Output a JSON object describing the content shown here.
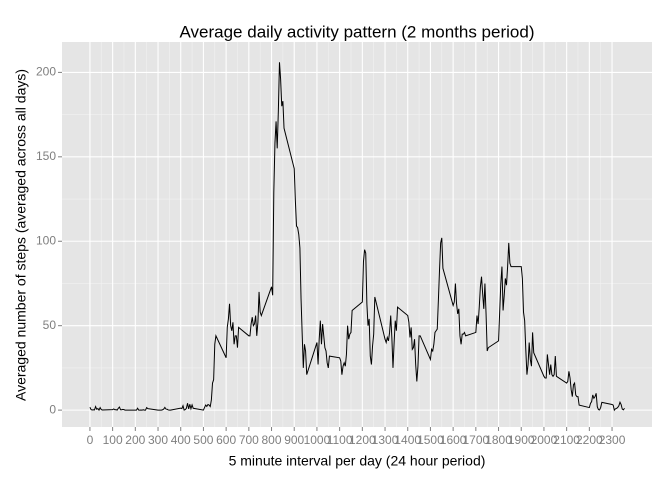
{
  "chart_data": {
    "type": "line",
    "title": "Average daily activity pattern (2 months period)",
    "x_label": "5 minute interval per day (24 hour period)",
    "y_label": "Averaged number of steps (averaged across all days)",
    "x": [
      0,
      5,
      10,
      15,
      20,
      25,
      30,
      35,
      40,
      45,
      50,
      55,
      100,
      105,
      110,
      115,
      120,
      125,
      130,
      135,
      140,
      145,
      150,
      155,
      200,
      205,
      210,
      215,
      220,
      225,
      230,
      235,
      240,
      245,
      250,
      255,
      300,
      305,
      310,
      315,
      320,
      325,
      330,
      335,
      340,
      345,
      350,
      355,
      400,
      405,
      410,
      415,
      420,
      425,
      430,
      435,
      440,
      445,
      450,
      455,
      500,
      505,
      510,
      515,
      520,
      525,
      530,
      535,
      540,
      545,
      550,
      555,
      600,
      605,
      610,
      615,
      620,
      625,
      630,
      635,
      640,
      645,
      650,
      655,
      700,
      705,
      710,
      715,
      720,
      725,
      730,
      735,
      740,
      745,
      750,
      755,
      800,
      805,
      810,
      815,
      820,
      825,
      830,
      835,
      840,
      845,
      850,
      855,
      900,
      905,
      910,
      915,
      920,
      925,
      930,
      935,
      940,
      945,
      950,
      955,
      1000,
      1005,
      1010,
      1015,
      1020,
      1025,
      1030,
      1035,
      1040,
      1045,
      1050,
      1055,
      1100,
      1105,
      1110,
      1115,
      1120,
      1125,
      1130,
      1135,
      1140,
      1145,
      1150,
      1155,
      1200,
      1205,
      1210,
      1215,
      1220,
      1225,
      1230,
      1235,
      1240,
      1245,
      1250,
      1255,
      1300,
      1305,
      1310,
      1315,
      1320,
      1325,
      1330,
      1335,
      1340,
      1345,
      1350,
      1355,
      1400,
      1405,
      1410,
      1415,
      1420,
      1425,
      1430,
      1435,
      1440,
      1445,
      1450,
      1455,
      1500,
      1505,
      1510,
      1515,
      1520,
      1525,
      1530,
      1535,
      1540,
      1545,
      1550,
      1555,
      1600,
      1605,
      1610,
      1615,
      1620,
      1625,
      1630,
      1635,
      1640,
      1645,
      1650,
      1655,
      1700,
      1705,
      1710,
      1715,
      1720,
      1725,
      1730,
      1735,
      1740,
      1745,
      1750,
      1755,
      1800,
      1805,
      1810,
      1815,
      1820,
      1825,
      1830,
      1835,
      1840,
      1845,
      1850,
      1855,
      1900,
      1905,
      1910,
      1915,
      1920,
      1925,
      1930,
      1935,
      1940,
      1945,
      1950,
      1955,
      2000,
      2005,
      2010,
      2015,
      2020,
      2025,
      2030,
      2035,
      2040,
      2045,
      2050,
      2055,
      2100,
      2105,
      2110,
      2115,
      2120,
      2125,
      2130,
      2135,
      2140,
      2145,
      2150,
      2155,
      2200,
      2205,
      2210,
      2215,
      2220,
      2225,
      2230,
      2235,
      2240,
      2245,
      2250,
      2255,
      2300,
      2305,
      2310,
      2315,
      2320,
      2325,
      2330,
      2335,
      2340,
      2345,
      2350,
      2355
    ],
    "values": [
      1.7,
      0.3,
      0.1,
      0.2,
      0.1,
      2.1,
      0.5,
      0.9,
      0,
      1.5,
      0.3,
      0.1,
      0.3,
      0.7,
      0.2,
      0.3,
      0,
      1.1,
      1.8,
      0.2,
      0.2,
      0.4,
      0.3,
      0,
      0,
      0,
      1.1,
      0,
      0,
      0.1,
      0,
      0.2,
      0,
      0,
      1.5,
      0.9,
      0,
      0,
      0,
      0,
      0.2,
      0.6,
      1.6,
      0.6,
      0.5,
      0.1,
      0,
      0,
      1.2,
      0.9,
      2.6,
      0,
      0.3,
      1.1,
      4.1,
      0.7,
      3.5,
      0.8,
      3.1,
      1.1,
      0,
      1.6,
      3,
      2.2,
      3.3,
      3,
      2.1,
      6,
      16,
      18,
      39,
      44,
      31,
      49,
      54,
      63,
      50,
      47,
      52,
      39,
      44,
      44,
      37,
      49,
      44,
      44,
      51,
      55,
      50,
      51,
      56,
      44,
      52,
      70,
      58,
      56,
      73,
      68,
      129,
      158,
      171,
      155,
      177,
      206,
      196,
      180,
      183,
      167,
      143,
      124,
      109,
      108,
      104,
      96,
      66,
      45,
      25,
      39,
      35,
      21,
      40,
      27,
      42,
      53,
      39,
      51,
      44,
      37,
      35,
      28,
      25,
      32,
      31,
      29,
      21,
      26,
      28,
      26,
      33,
      50,
      42,
      45,
      46,
      59,
      64,
      88,
      95,
      93,
      63,
      50,
      54,
      32,
      27,
      38,
      45,
      67,
      42,
      40,
      43,
      41,
      46,
      56,
      43,
      25,
      40,
      53,
      47,
      61,
      56,
      52,
      43,
      49,
      36,
      37,
      42,
      27,
      17,
      26,
      44,
      44,
      30,
      36,
      35,
      39,
      46,
      47,
      48,
      65,
      83,
      99,
      102,
      84,
      62,
      64,
      75,
      63,
      57,
      60,
      44,
      39,
      45,
      45,
      46,
      44,
      46,
      56,
      51,
      61,
      73,
      79,
      69,
      60,
      75,
      57,
      35,
      37,
      41,
      58,
      75,
      85,
      59,
      68,
      78,
      74,
      85,
      99,
      87,
      85,
      85,
      78,
      58,
      53,
      36,
      21,
      27,
      40,
      30,
      26,
      46,
      34,
      20,
      19,
      19,
      33,
      27,
      21,
      27,
      21,
      20,
      21,
      32,
      20,
      16,
      17,
      23,
      19,
      12,
      8,
      15,
      16,
      9,
      8,
      8,
      3,
      1.5,
      4,
      5,
      9,
      7,
      8,
      10,
      2,
      0.3,
      0.1,
      1.6,
      4.6,
      3.3,
      3,
      0,
      0.8,
      1,
      1.6,
      2.6,
      4.7,
      3.3,
      0.6,
      0.2,
      1.1
    ],
    "color": "#000000",
    "xlim": [
      -123,
      2476
    ],
    "ylim": [
      -10,
      218
    ],
    "xticks": [
      0,
      100,
      200,
      300,
      400,
      500,
      600,
      700,
      800,
      900,
      1000,
      1100,
      1200,
      1300,
      1400,
      1500,
      1600,
      1700,
      1800,
      1900,
      2000,
      2100,
      2200,
      2300
    ],
    "yticks": [
      0,
      50,
      100,
      150,
      200
    ],
    "grid": true
  }
}
